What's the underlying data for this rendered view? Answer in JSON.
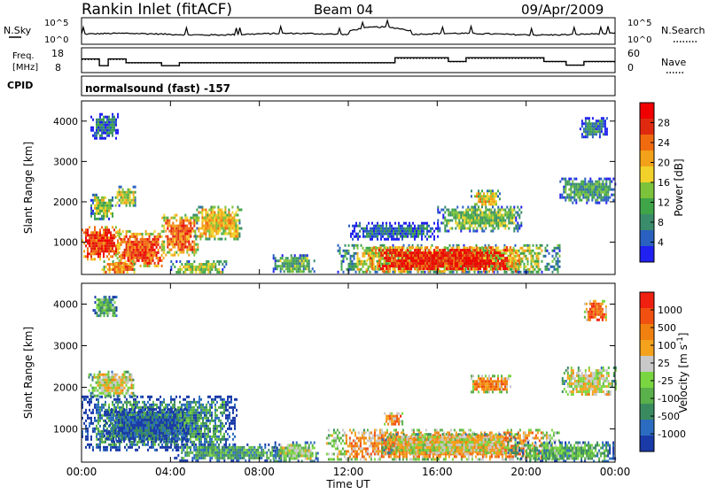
{
  "header": {
    "station": "Rankin Inlet (fitACF)",
    "beam": "Beam 04",
    "date": "09/Apr/2009"
  },
  "status_panels": {
    "nsky_label": "N.Sky",
    "nsearch_label": "N.Search",
    "freq_label_line1": "Freq.",
    "freq_label_line2": "[MHz]",
    "nave_label": "Nave",
    "cpid_label": "CPID",
    "cpid_text": "normalsound (fast) -157",
    "noise_ticks_left": [
      "10^5",
      "10^0"
    ],
    "noise_ticks_right": [
      "10^5",
      "10^0"
    ],
    "freq_ticks": [
      "18",
      "8"
    ],
    "nave_ticks": [
      "60",
      "0"
    ]
  },
  "chart_data": [
    {
      "type": "heatmap",
      "panel": "power",
      "ylabel": "Slant Range [km]",
      "yticks": [
        "1000",
        "2000",
        "3000",
        "4000"
      ],
      "ylim": [
        200,
        4500
      ],
      "xlim": [
        0,
        24
      ],
      "colorbar": {
        "label": "Power [dB]",
        "ticks": [
          "4",
          "8",
          "12",
          "16",
          "20",
          "24",
          "28"
        ],
        "colors": [
          "#2020f0",
          "#2a60c0",
          "#3a8c6a",
          "#3fa548",
          "#7cc23a",
          "#f2d22a",
          "#f2a21a",
          "#f06a10",
          "#e02a10",
          "#f00000"
        ]
      },
      "patches": [
        {
          "t0": 0.0,
          "t1": 1.7,
          "r0": 600,
          "r1": 1400,
          "level": 0.85
        },
        {
          "t0": 1.5,
          "t1": 3.7,
          "r0": 400,
          "r1": 1300,
          "level": 0.8
        },
        {
          "t0": 3.6,
          "t1": 5.2,
          "r0": 700,
          "r1": 1700,
          "level": 0.75
        },
        {
          "t0": 5.0,
          "t1": 7.2,
          "r0": 1100,
          "r1": 1900,
          "level": 0.55
        },
        {
          "t0": 1.5,
          "t1": 2.4,
          "r0": 1900,
          "r1": 2400,
          "level": 0.5
        },
        {
          "t0": 0.4,
          "t1": 1.4,
          "r0": 1600,
          "r1": 2200,
          "level": 0.45
        },
        {
          "t0": 4.0,
          "t1": 6.5,
          "r0": 250,
          "r1": 550,
          "level": 0.45
        },
        {
          "t0": 0.9,
          "t1": 2.4,
          "r0": 250,
          "r1": 550,
          "level": 0.7
        },
        {
          "t0": 8.6,
          "t1": 10.5,
          "r0": 250,
          "r1": 700,
          "level": 0.35
        },
        {
          "t0": 11.5,
          "t1": 21.5,
          "r0": 250,
          "r1": 950,
          "level": 0.5
        },
        {
          "t0": 12.8,
          "t1": 19.7,
          "r0": 300,
          "r1": 900,
          "level": 0.9
        },
        {
          "t0": 16.0,
          "t1": 19.8,
          "r0": 1300,
          "r1": 1900,
          "level": 0.4
        },
        {
          "t0": 17.5,
          "t1": 18.8,
          "r0": 1900,
          "r1": 2300,
          "level": 0.55
        },
        {
          "t0": 21.5,
          "t1": 24.0,
          "r0": 2000,
          "r1": 2600,
          "level": 0.3
        },
        {
          "t0": 22.4,
          "t1": 23.6,
          "r0": 3600,
          "r1": 4100,
          "level": 0.25
        },
        {
          "t0": 0.4,
          "t1": 1.6,
          "r0": 3600,
          "r1": 4200,
          "level": 0.2
        },
        {
          "t0": 12.0,
          "t1": 16.0,
          "r0": 1100,
          "r1": 1500,
          "level": 0.2
        }
      ]
    },
    {
      "type": "heatmap",
      "panel": "velocity",
      "ylabel": "Slant Range [km]",
      "yticks": [
        "1000",
        "2000",
        "3000",
        "4000"
      ],
      "ylim": [
        200,
        4500
      ],
      "xlim": [
        0,
        24
      ],
      "xticks": [
        "00:00",
        "04:00",
        "08:00",
        "12:00",
        "16:00",
        "20:00",
        "00:00"
      ],
      "xlabel": "Time UT",
      "colorbar": {
        "label": "Velocity [m s",
        "label_sup": "-1",
        "label_close": "]",
        "ticks": [
          "1000",
          "500",
          "100",
          "25",
          "-25",
          "-100",
          "-500",
          "-1000"
        ],
        "colors": [
          "#1a3aa8",
          "#2b6cc0",
          "#3a8a60",
          "#5ab04a",
          "#7ad640",
          "#c8c8c8",
          "#f4a21c",
          "#f08010",
          "#f05010",
          "#f02010"
        ]
      },
      "patches": [
        {
          "t0": 0.0,
          "t1": 7.0,
          "r0": 500,
          "r1": 1800,
          "level": 0.25
        },
        {
          "t0": 1.0,
          "t1": 4.8,
          "r0": 700,
          "r1": 1500,
          "level": 0.12
        },
        {
          "t0": 0.3,
          "t1": 2.4,
          "r0": 1800,
          "r1": 2400,
          "level": 0.55
        },
        {
          "t0": 4.0,
          "t1": 9.0,
          "r0": 250,
          "r1": 650,
          "level": 0.3
        },
        {
          "t0": 8.6,
          "t1": 10.6,
          "r0": 250,
          "r1": 700,
          "level": 0.45
        },
        {
          "t0": 11.0,
          "t1": 21.5,
          "r0": 250,
          "r1": 1000,
          "level": 0.7
        },
        {
          "t0": 13.5,
          "t1": 19.6,
          "r0": 400,
          "r1": 900,
          "level": 0.55
        },
        {
          "t0": 19.5,
          "t1": 24.0,
          "r0": 250,
          "r1": 700,
          "level": 0.35
        },
        {
          "t0": 17.5,
          "t1": 19.3,
          "r0": 1900,
          "r1": 2300,
          "level": 0.72
        },
        {
          "t0": 21.6,
          "t1": 24.0,
          "r0": 1800,
          "r1": 2500,
          "level": 0.55
        },
        {
          "t0": 22.6,
          "t1": 23.6,
          "r0": 3600,
          "r1": 4100,
          "level": 0.82
        },
        {
          "t0": 0.5,
          "t1": 1.6,
          "r0": 3700,
          "r1": 4200,
          "level": 0.35
        },
        {
          "t0": 13.6,
          "t1": 14.4,
          "r0": 1100,
          "r1": 1400,
          "level": 0.75
        }
      ]
    }
  ]
}
